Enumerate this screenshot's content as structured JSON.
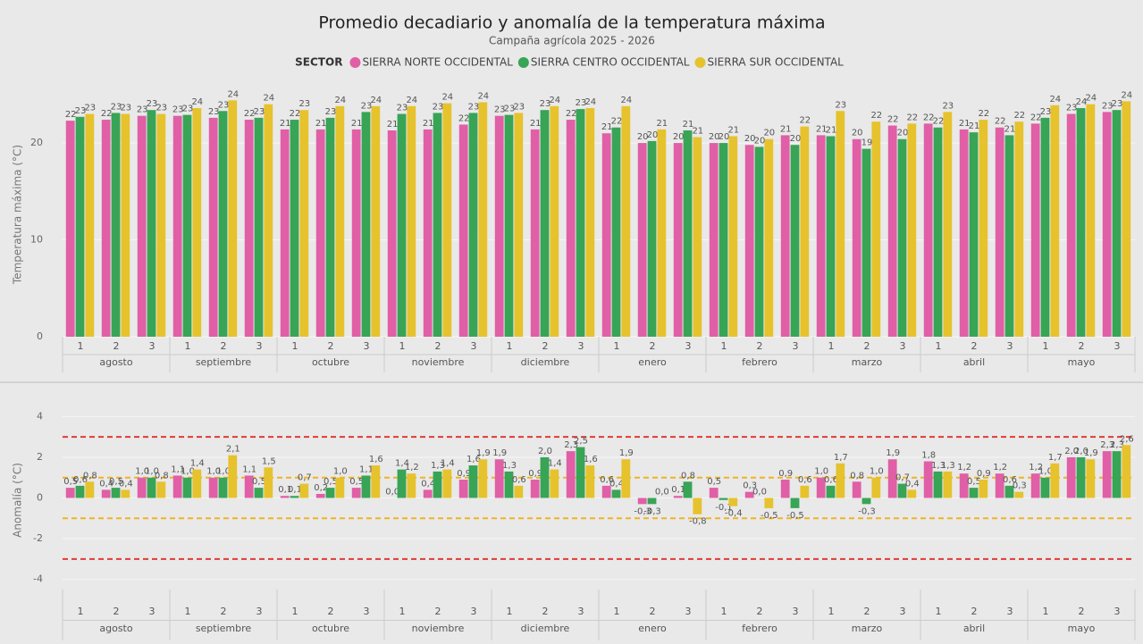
{
  "chart_data": [
    {
      "type": "bar",
      "title": "Promedio decadiario y anomalía de la temperatura máxima",
      "subtitle": "Campaña agrícola 2025 - 2026",
      "legend_title": "SECTOR",
      "y_label": "Temperatura máxima (°C)",
      "categories": [
        "1",
        "2",
        "3",
        "1",
        "2",
        "3",
        "1",
        "2",
        "3",
        "1",
        "2",
        "3",
        "1",
        "2",
        "3",
        "1",
        "2",
        "3",
        "1",
        "2",
        "3",
        "1",
        "2",
        "3",
        "1",
        "2",
        "3",
        "1",
        "2",
        "3"
      ],
      "groups": [
        "agosto",
        "septiembre",
        "octubre",
        "noviembre",
        "diciembre",
        "enero",
        "febrero",
        "marzo",
        "abril",
        "mayo"
      ],
      "ylim": [
        0,
        26
      ],
      "yticks": [
        0,
        10,
        20
      ],
      "grid": true,
      "series": [
        {
          "name": "SIERRA NORTE OCCIDENTAL",
          "color": "#e05fa6",
          "values": [
            22.3,
            22.4,
            22.8,
            22.8,
            22.6,
            22.4,
            21.4,
            21.4,
            21.4,
            21.3,
            21.4,
            21.9,
            22.8,
            21.4,
            22.4,
            21.0,
            20.0,
            20.0,
            20.0,
            19.8,
            20.8,
            20.8,
            20.4,
            21.8,
            22.0,
            21.4,
            21.6,
            22.0,
            23.0,
            23.2
          ],
          "value_labels": [
            "22",
            "22",
            "23",
            "23",
            "23",
            "22",
            "21",
            "21",
            "21",
            "21",
            "21",
            "22",
            "23",
            "21",
            "22",
            "21",
            "20",
            "20",
            "20",
            "20",
            "21",
            "21",
            "20",
            "22",
            "22",
            "21",
            "22",
            "22",
            "23",
            "23"
          ]
        },
        {
          "name": "SIERRA CENTRO OCCIDENTAL",
          "color": "#38a456",
          "values": [
            22.7,
            23.1,
            23.4,
            22.9,
            23.3,
            22.6,
            22.4,
            22.6,
            23.2,
            23.0,
            23.1,
            23.1,
            22.9,
            23.4,
            23.5,
            21.6,
            20.2,
            21.3,
            20.0,
            19.6,
            19.8,
            20.7,
            19.4,
            20.4,
            21.6,
            21.1,
            20.8,
            22.6,
            23.6,
            23.4
          ],
          "value_labels": [
            "23",
            "23",
            "23",
            "23",
            "23",
            "23",
            "22",
            "23",
            "23",
            "23",
            "23",
            "23",
            "23",
            "23",
            "23",
            "22",
            "20",
            "21",
            "20",
            "20",
            "20",
            "21",
            "19",
            "20",
            "22",
            "21",
            "21",
            "23",
            "24",
            "23"
          ]
        },
        {
          "name": "SIERRA SUR OCCIDENTAL",
          "color": "#e6c22d",
          "values": [
            23.0,
            23.0,
            23.0,
            23.6,
            24.4,
            24.0,
            23.4,
            23.8,
            23.8,
            23.8,
            24.1,
            24.2,
            23.1,
            23.8,
            23.6,
            23.8,
            21.4,
            20.6,
            20.7,
            20.4,
            21.7,
            23.3,
            22.2,
            22.0,
            23.2,
            22.4,
            22.2,
            23.9,
            24.0,
            24.3
          ],
          "value_labels": [
            "23",
            "23",
            "23",
            "24",
            "24",
            "24",
            "23",
            "24",
            "24",
            "24",
            "24",
            "24",
            "23",
            "24",
            "24",
            "24",
            "21",
            "21",
            "21",
            "20",
            "22",
            "23",
            "22",
            "22",
            "23",
            "22",
            "22",
            "24",
            "24",
            "24"
          ]
        }
      ]
    },
    {
      "type": "bar",
      "y_label": "Anomalía (°C)",
      "categories": [
        "1",
        "2",
        "3",
        "1",
        "2",
        "3",
        "1",
        "2",
        "3",
        "1",
        "2",
        "3",
        "1",
        "2",
        "3",
        "1",
        "2",
        "3",
        "1",
        "2",
        "3",
        "1",
        "2",
        "3",
        "1",
        "2",
        "3",
        "1",
        "2",
        "3"
      ],
      "groups": [
        "agosto",
        "septiembre",
        "octubre",
        "noviembre",
        "diciembre",
        "enero",
        "febrero",
        "marzo",
        "abril",
        "mayo"
      ],
      "ylim": [
        -4.5,
        4.5
      ],
      "yticks": [
        -4,
        -2,
        0,
        2,
        4
      ],
      "grid": true,
      "reference_lines": [
        {
          "value": 3,
          "color": "#e03a35"
        },
        {
          "value": -3,
          "color": "#e03a35"
        },
        {
          "value": 1,
          "color": "#f0b323"
        },
        {
          "value": -1,
          "color": "#f0b323"
        }
      ],
      "series": [
        {
          "color": "#e05fa6",
          "values": [
            0.5,
            0.4,
            1.0,
            1.1,
            1.0,
            1.1,
            0.1,
            0.2,
            0.5,
            0.0,
            0.4,
            0.9,
            1.9,
            0.9,
            2.3,
            0.6,
            -0.3,
            0.1,
            0.5,
            0.3,
            0.9,
            1.0,
            0.8,
            1.9,
            1.8,
            1.2,
            1.2,
            1.2,
            2.0,
            2.3
          ],
          "value_labels": [
            "0,5",
            "0,4",
            "1,0",
            "1,1",
            "1,0",
            "1,1",
            "0,1",
            "0,2",
            "0,5",
            "0,0",
            "0,4",
            "0,9",
            "1,9",
            "0,9",
            "2,3",
            "0,6",
            "-0,3",
            "0,1",
            "0,5",
            "0,3",
            "0,9",
            "1,0",
            "0,8",
            "1,9",
            "1,8",
            "1,2",
            "1,2",
            "1,2",
            "2,0",
            "2,3"
          ]
        },
        {
          "color": "#38a456",
          "values": [
            0.6,
            0.5,
            1.0,
            1.0,
            1.0,
            0.5,
            0.1,
            0.5,
            1.1,
            1.4,
            1.3,
            1.6,
            1.3,
            2.0,
            2.5,
            0.4,
            -0.3,
            0.8,
            -0.1,
            0.0,
            -0.5,
            0.6,
            -0.3,
            0.7,
            1.3,
            0.5,
            0.6,
            1.0,
            2.0,
            2.3
          ],
          "value_labels": [
            "0,6",
            "0,5",
            "1,0",
            "1,0",
            "1,0",
            "0,5",
            "0,1",
            "0,5",
            "1,1",
            "1,4",
            "1,3",
            "1,6",
            "1,3",
            "2,0",
            "2,5",
            "0,4",
            "-0,3",
            "0,8",
            "-0,1",
            "0,0",
            "-0,5",
            "0,6",
            "-0,3",
            "0,7",
            "1,3",
            "0,5",
            "0,6",
            "1,0",
            "2,0",
            "2,3"
          ]
        },
        {
          "color": "#e6c22d",
          "values": [
            0.8,
            0.4,
            0.8,
            1.4,
            2.1,
            1.5,
            0.7,
            1.0,
            1.6,
            1.2,
            1.4,
            1.9,
            0.6,
            1.4,
            1.6,
            1.9,
            0.0,
            -0.8,
            -0.4,
            -0.5,
            0.6,
            1.7,
            1.0,
            0.4,
            1.3,
            0.9,
            0.3,
            1.7,
            1.9,
            2.6
          ],
          "value_labels": [
            "0,8",
            "0,4",
            "0,8",
            "1,4",
            "2,1",
            "1,5",
            "0,7",
            "1,0",
            "1,6",
            "1,2",
            "1,4",
            "1,9",
            "0,6",
            "1,4",
            "1,6",
            "1,9",
            "0,0",
            "-0,8",
            "-0,4",
            "-0,5",
            "0,6",
            "1,7",
            "1,0",
            "0,4",
            "1,3",
            "0,9",
            "0,3",
            "1,7",
            "1,9",
            "2,6"
          ]
        }
      ]
    }
  ]
}
